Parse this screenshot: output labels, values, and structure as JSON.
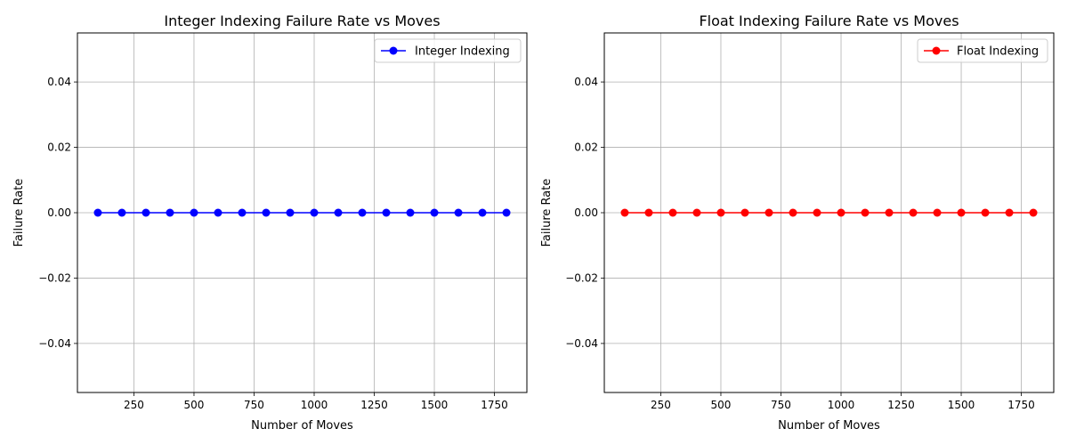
{
  "chart_data": [
    {
      "type": "line",
      "title": "Integer Indexing Failure Rate vs Moves",
      "xlabel": "Number of Moves",
      "ylabel": "Failure Rate",
      "xlim": [
        15,
        1885
      ],
      "ylim": [
        -0.055,
        0.055
      ],
      "xticks": [
        "250",
        "500",
        "750",
        "1000",
        "1250",
        "1500",
        "1750"
      ],
      "yticks": [
        "−0.04",
        "−0.02",
        "0.00",
        "0.02",
        "0.04"
      ],
      "grid": true,
      "legend_position": "top-right",
      "x": [
        100,
        200,
        300,
        400,
        500,
        600,
        700,
        800,
        900,
        1000,
        1100,
        1200,
        1300,
        1400,
        1500,
        1600,
        1700,
        1800
      ],
      "series": [
        {
          "name": "Integer Indexing",
          "color": "#0000ff",
          "marker": "circle",
          "values": [
            0,
            0,
            0,
            0,
            0,
            0,
            0,
            0,
            0,
            0,
            0,
            0,
            0,
            0,
            0,
            0,
            0,
            0
          ]
        }
      ]
    },
    {
      "type": "line",
      "title": "Float Indexing Failure Rate vs Moves",
      "xlabel": "Number of Moves",
      "ylabel": "Failure Rate",
      "xlim": [
        15,
        1885
      ],
      "ylim": [
        -0.055,
        0.055
      ],
      "xticks": [
        "250",
        "500",
        "750",
        "1000",
        "1250",
        "1500",
        "1750"
      ],
      "yticks": [
        "−0.04",
        "−0.02",
        "0.00",
        "0.02",
        "0.04"
      ],
      "grid": true,
      "legend_position": "top-right",
      "x": [
        100,
        200,
        300,
        400,
        500,
        600,
        700,
        800,
        900,
        1000,
        1100,
        1200,
        1300,
        1400,
        1500,
        1600,
        1700,
        1800
      ],
      "series": [
        {
          "name": "Float Indexing",
          "color": "#ff0000",
          "marker": "circle",
          "values": [
            0,
            0,
            0,
            0,
            0,
            0,
            0,
            0,
            0,
            0,
            0,
            0,
            0,
            0,
            0,
            0,
            0,
            0
          ]
        }
      ]
    }
  ]
}
